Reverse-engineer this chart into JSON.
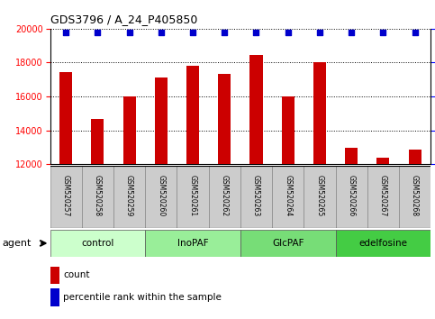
{
  "title": "GDS3796 / A_24_P405850",
  "samples": [
    "GSM520257",
    "GSM520258",
    "GSM520259",
    "GSM520260",
    "GSM520261",
    "GSM520262",
    "GSM520263",
    "GSM520264",
    "GSM520265",
    "GSM520266",
    "GSM520267",
    "GSM520268"
  ],
  "counts": [
    17450,
    14650,
    16000,
    17100,
    17800,
    17350,
    18450,
    16000,
    18050,
    13000,
    12400,
    12850
  ],
  "bar_color": "#cc0000",
  "dot_color": "#0000cc",
  "ylim_left": [
    12000,
    20000
  ],
  "ylim_right": [
    0,
    100
  ],
  "yticks_left": [
    12000,
    14000,
    16000,
    18000,
    20000
  ],
  "yticks_right": [
    0,
    25,
    50,
    75,
    100
  ],
  "groups": [
    {
      "label": "control",
      "start": 0,
      "end": 3,
      "color": "#ccffcc"
    },
    {
      "label": "InoPAF",
      "start": 3,
      "end": 6,
      "color": "#99ee99"
    },
    {
      "label": "GlcPAF",
      "start": 6,
      "end": 9,
      "color": "#77dd77"
    },
    {
      "label": "edelfosine",
      "start": 9,
      "end": 12,
      "color": "#44cc44"
    }
  ],
  "legend_count_label": "count",
  "legend_pct_label": "percentile rank within the sample",
  "bar_width": 0.4,
  "sample_bg": "#cccccc",
  "agent_label": "agent"
}
